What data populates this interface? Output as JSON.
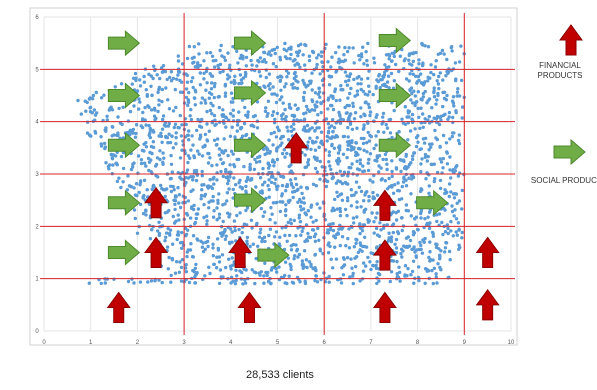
{
  "legend": {
    "financial_label": "FINANCIAL PRODUCTS",
    "social_label": "SOCIAL PRODUCTS",
    "financial_icon": "red-up-arrow-icon",
    "social_icon": "green-right-arrow-icon"
  },
  "caption": "28,533 clients",
  "colors": {
    "points": "#5b9bd5",
    "grid_major": "#d9232a",
    "grid_minor": "#e6e6e6",
    "financial": "#c00000",
    "social": "#70ad47",
    "social_edge": "#4d8a2e",
    "financial_edge": "#8a0000"
  },
  "chart_data": {
    "type": "scatter",
    "title": "",
    "xlabel": "",
    "ylabel": "",
    "xlim": [
      0,
      10
    ],
    "ylim": [
      0,
      6
    ],
    "x_ticks": [
      "0",
      "1",
      "2",
      "3",
      "4",
      "5",
      "6",
      "7",
      "8",
      "9",
      "10"
    ],
    "y_ticks": [
      "0",
      "1",
      "2",
      "3",
      "4",
      "5",
      "6"
    ],
    "grid": true,
    "major_grid_x": [
      3,
      6,
      9
    ],
    "major_grid_y": [
      1,
      2,
      3,
      4,
      5
    ],
    "point_count": 28533,
    "point_cloud": {
      "x_range": [
        0.6,
        9.0
      ],
      "y_range": [
        0.9,
        5.5
      ]
    },
    "social_arrows": [
      {
        "x": 1.7,
        "y": 5.5
      },
      {
        "x": 4.4,
        "y": 5.5
      },
      {
        "x": 7.5,
        "y": 5.55
      },
      {
        "x": 1.7,
        "y": 4.5
      },
      {
        "x": 4.4,
        "y": 4.55
      },
      {
        "x": 7.5,
        "y": 4.5
      },
      {
        "x": 1.7,
        "y": 3.55
      },
      {
        "x": 4.4,
        "y": 3.55
      },
      {
        "x": 7.5,
        "y": 3.55
      },
      {
        "x": 1.7,
        "y": 2.45
      },
      {
        "x": 4.4,
        "y": 2.5
      },
      {
        "x": 8.3,
        "y": 2.45
      },
      {
        "x": 1.7,
        "y": 1.5
      },
      {
        "x": 4.9,
        "y": 1.45
      }
    ],
    "financial_arrows": [
      {
        "x": 2.4,
        "y": 2.45
      },
      {
        "x": 5.4,
        "y": 3.5
      },
      {
        "x": 7.3,
        "y": 2.4
      },
      {
        "x": 2.4,
        "y": 1.5
      },
      {
        "x": 4.2,
        "y": 1.5
      },
      {
        "x": 7.3,
        "y": 1.45
      },
      {
        "x": 9.5,
        "y": 1.5
      },
      {
        "x": 1.6,
        "y": 0.45
      },
      {
        "x": 4.4,
        "y": 0.45
      },
      {
        "x": 7.3,
        "y": 0.45
      },
      {
        "x": 9.5,
        "y": 0.5
      }
    ]
  }
}
